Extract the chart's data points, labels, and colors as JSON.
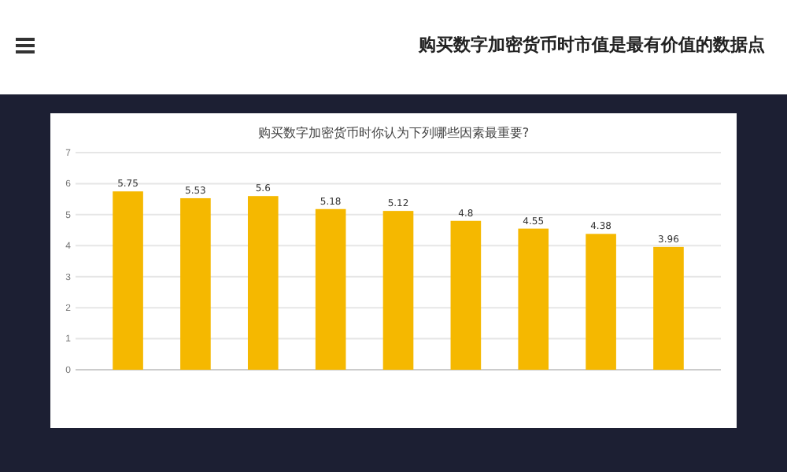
{
  "chart_data": {
    "type": "bar",
    "title": "购买数字加密货币时你认为下列哪些因素最重要?",
    "annotations": [
      "购买数字加密货币时市值是最有价值的数据点"
    ],
    "categories": [
      null,
      null,
      null,
      null,
      null,
      null,
      null,
      null,
      null
    ],
    "values": [
      5.75,
      5.53,
      5.6,
      5.18,
      5.12,
      4.8,
      4.55,
      4.38,
      3.96
    ],
    "value_labels": [
      "5.75",
      "5.53",
      "5.6",
      "5.18",
      "5.12",
      "4.8",
      "4.55",
      "4.38",
      "3.96"
    ],
    "color": "#f5b800",
    "ylim": [
      0,
      7
    ],
    "yticks": [
      0,
      1,
      2,
      3,
      4,
      5,
      6,
      7
    ],
    "grid": "y"
  }
}
